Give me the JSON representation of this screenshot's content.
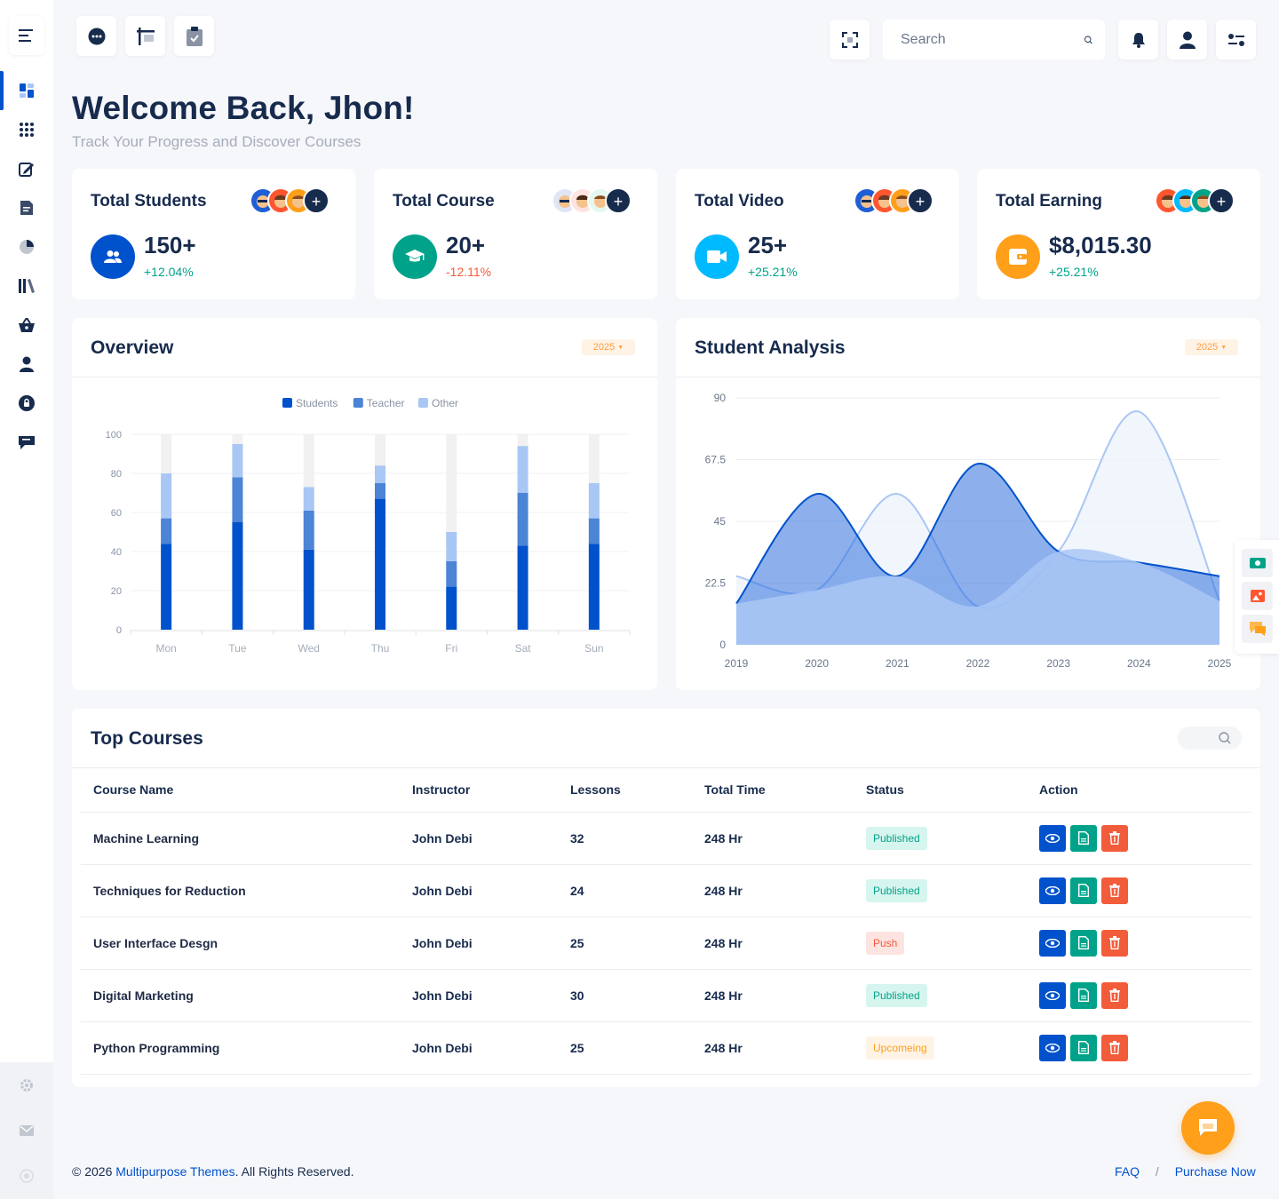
{
  "sidebar": {
    "items": [
      {
        "icon": "dashboard-icon"
      },
      {
        "icon": "apps-grid-icon"
      },
      {
        "icon": "edit-icon"
      },
      {
        "icon": "document-icon"
      },
      {
        "icon": "pie-chart-icon"
      },
      {
        "icon": "library-icon"
      },
      {
        "icon": "basket-icon"
      },
      {
        "icon": "user-icon"
      },
      {
        "icon": "lock-icon"
      },
      {
        "icon": "chat-icon"
      }
    ],
    "bottom": [
      {
        "icon": "settings-icon"
      },
      {
        "icon": "mail-icon"
      },
      {
        "icon": "power-icon"
      }
    ]
  },
  "topbar": {
    "search_placeholder": "Search"
  },
  "header": {
    "title": "Welcome Back, Jhon!",
    "subtitle": "Track Your Progress and Discover Courses"
  },
  "stats": [
    {
      "title": "Total Students",
      "value": "150+",
      "change": "+12.04%",
      "trend": "up",
      "color": "#0052cc",
      "icon": "users-icon"
    },
    {
      "title": "Total Course",
      "value": "20+",
      "change": "-12.11%",
      "trend": "down",
      "color": "#00a389",
      "icon": "graduation-cap-icon"
    },
    {
      "title": "Total Video",
      "value": "25+",
      "change": "+25.21%",
      "trend": "up",
      "color": "#00baff",
      "icon": "video-icon"
    },
    {
      "title": "Total Earning",
      "value": "$8,015.30",
      "change": "+25.21%",
      "trend": "up",
      "color": "#ff9f1a",
      "icon": "wallet-icon"
    }
  ],
  "overview": {
    "title": "Overview",
    "year": "2025"
  },
  "analysis": {
    "title": "Student Analysis",
    "year": "2025"
  },
  "chart_data": [
    {
      "type": "bar",
      "stacked": true,
      "categories": [
        "Mon",
        "Tue",
        "Wed",
        "Thu",
        "Fri",
        "Sat",
        "Sun"
      ],
      "series": [
        {
          "name": "Students",
          "values": [
            44,
            55,
            41,
            67,
            22,
            43,
            44
          ],
          "color": "#0052cc"
        },
        {
          "name": "Teacher",
          "values": [
            13,
            23,
            20,
            8,
            13,
            27,
            13
          ],
          "color": "#4c84d6"
        },
        {
          "name": "Other",
          "values": [
            23,
            17,
            12,
            9,
            15,
            24,
            18
          ],
          "color": "#a9c7f5"
        }
      ],
      "ylim": [
        0,
        100
      ],
      "yticks": [
        0,
        20,
        40,
        60,
        80,
        100
      ],
      "legend": "top-center",
      "grid": true
    },
    {
      "type": "area",
      "x": [
        "2019",
        "2020",
        "2021",
        "2022",
        "2023",
        "2024",
        "2025"
      ],
      "series": [
        {
          "values": [
            15,
            55,
            25,
            66,
            34,
            30,
            25
          ],
          "color": "#0052cc"
        },
        {
          "values": [
            25,
            20,
            55,
            14,
            34,
            85,
            16
          ],
          "color": "#a9c7f5"
        }
      ],
      "ylim": [
        0,
        90
      ],
      "yticks": [
        "0",
        "22.5",
        "45",
        "67.5",
        "90"
      ],
      "grid": true
    }
  ],
  "courses": {
    "title": "Top Courses",
    "columns": [
      "Course Name",
      "Instructor",
      "Lessons",
      "Total Time",
      "Status",
      "Action"
    ],
    "rows": [
      {
        "name": "Machine Learning",
        "instructor": "John Debi",
        "lessons": "32",
        "time": "248 Hr",
        "status": "Published"
      },
      {
        "name": "Techniques for Reduction",
        "instructor": "John Debi",
        "lessons": "24",
        "time": "248 Hr",
        "status": "Published"
      },
      {
        "name": "User Interface Desgn",
        "instructor": "John Debi",
        "lessons": "25",
        "time": "248 Hr",
        "status": "Push"
      },
      {
        "name": "Digital Marketing",
        "instructor": "John Debi",
        "lessons": "30",
        "time": "248 Hr",
        "status": "Published"
      },
      {
        "name": "Python Programming",
        "instructor": "John Debi",
        "lessons": "25",
        "time": "248 Hr",
        "status": "Upcomeing"
      }
    ],
    "status_colors": {
      "Published": {
        "bg": "#d7f5ef",
        "fg": "#00a389"
      },
      "Push": {
        "bg": "#fde4e1",
        "fg": "#f25c3b"
      },
      "Upcomeing": {
        "bg": "#fff3e6",
        "fg": "#ff9f1a"
      }
    }
  },
  "footer": {
    "copyright": "© 2026",
    "brand": "Multipurpose Themes",
    "rights": ". All Rights Reserved.",
    "faq": "FAQ",
    "sep": "/",
    "purchase": "Purchase Now"
  }
}
